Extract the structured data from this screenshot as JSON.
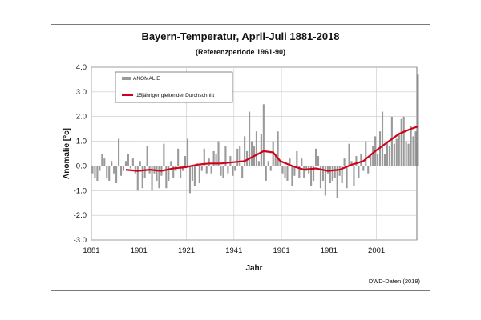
{
  "chart_data": {
    "type": "bar",
    "title": "Bayern-Temperatur, April-Juli 1881-2018",
    "subtitle": "(Referenzperiode 1961-90)",
    "xlabel": "Jahr",
    "ylabel": "Anomalie [°c]",
    "source": "DWD-Daten  (2018)",
    "xlim": [
      1881,
      2018
    ],
    "ylim": [
      -3.0,
      4.0
    ],
    "x_ticks": [
      "1881",
      "1901",
      "1921",
      "1941",
      "1961",
      "1981",
      "2001"
    ],
    "x_tick_values": [
      1881,
      1901,
      1921,
      1941,
      1961,
      1981,
      2001
    ],
    "y_ticks": [
      "-3.0",
      "-2.0",
      "-1.0",
      "0.0",
      "1.0",
      "2.0",
      "3.0",
      "4.0"
    ],
    "y_tick_values": [
      -3,
      -2,
      -1,
      0,
      1,
      2,
      3,
      4
    ],
    "grid": true,
    "legend_position": "top-left",
    "series": [
      {
        "name": "ANOMALIE",
        "type": "bar",
        "color": "#9a9a9a",
        "x": [
          1881,
          1882,
          1883,
          1884,
          1885,
          1886,
          1887,
          1888,
          1889,
          1890,
          1891,
          1892,
          1893,
          1894,
          1895,
          1896,
          1897,
          1898,
          1899,
          1900,
          1901,
          1902,
          1903,
          1904,
          1905,
          1906,
          1907,
          1908,
          1909,
          1910,
          1911,
          1912,
          1913,
          1914,
          1915,
          1916,
          1917,
          1918,
          1919,
          1920,
          1921,
          1922,
          1923,
          1924,
          1925,
          1926,
          1927,
          1928,
          1929,
          1930,
          1931,
          1932,
          1933,
          1934,
          1935,
          1936,
          1937,
          1938,
          1939,
          1940,
          1941,
          1942,
          1943,
          1944,
          1945,
          1946,
          1947,
          1948,
          1949,
          1950,
          1951,
          1952,
          1953,
          1954,
          1955,
          1956,
          1957,
          1958,
          1959,
          1960,
          1961,
          1962,
          1963,
          1964,
          1965,
          1966,
          1967,
          1968,
          1969,
          1970,
          1971,
          1972,
          1973,
          1974,
          1975,
          1976,
          1977,
          1978,
          1979,
          1980,
          1981,
          1982,
          1983,
          1984,
          1985,
          1986,
          1987,
          1988,
          1989,
          1990,
          1991,
          1992,
          1993,
          1994,
          1995,
          1996,
          1997,
          1998,
          1999,
          2000,
          2001,
          2002,
          2003,
          2004,
          2005,
          2006,
          2007,
          2008,
          2009,
          2010,
          2011,
          2012,
          2013,
          2014,
          2015,
          2016,
          2017,
          2018
        ],
        "values": [
          -0.3,
          -0.5,
          -0.6,
          -0.2,
          0.5,
          0.3,
          -0.5,
          -0.6,
          0.2,
          -0.3,
          -0.7,
          1.1,
          -0.4,
          -0.2,
          0.2,
          0.5,
          -0.1,
          0.3,
          -0.3,
          -1.0,
          0.2,
          -0.9,
          -0.5,
          0.8,
          -0.3,
          -1.0,
          -0.3,
          -0.6,
          -0.9,
          -0.4,
          0.9,
          -0.9,
          -0.6,
          0.2,
          -0.5,
          -0.2,
          0.7,
          -0.5,
          -0.2,
          0.4,
          1.1,
          -1.1,
          -0.6,
          -0.8,
          0.1,
          -0.7,
          -0.2,
          0.7,
          -0.3,
          0.3,
          -0.3,
          0.6,
          0.5,
          1.0,
          -0.4,
          -0.5,
          0.8,
          -0.3,
          0.4,
          -0.4,
          -0.2,
          0.7,
          0.8,
          -0.5,
          1.2,
          0.6,
          2.2,
          1.0,
          0.8,
          1.4,
          0.2,
          1.3,
          2.5,
          -0.6,
          0.2,
          -0.2,
          1.0,
          0.4,
          1.4,
          0.2,
          -0.3,
          -0.5,
          -0.6,
          0.3,
          -0.8,
          -0.4,
          0.6,
          -0.5,
          0.3,
          -0.5,
          -0.2,
          -0.3,
          -0.8,
          -0.6,
          0.7,
          0.4,
          -0.9,
          -0.6,
          -1.2,
          -0.3,
          -0.7,
          -0.6,
          -0.5,
          -1.3,
          -0.4,
          -0.7,
          0.3,
          -0.9,
          0.9,
          0.2,
          -0.8,
          0.4,
          -0.5,
          0.5,
          -0.2,
          1.0,
          -0.3,
          0.4,
          0.8,
          1.2,
          0.5,
          1.4,
          2.2,
          0.5,
          1.0,
          0.8,
          2.0,
          0.9,
          1.1,
          1.3,
          1.9,
          2.0,
          1.0,
          0.9,
          1.6,
          1.2,
          1.4,
          3.7
        ]
      },
      {
        "name": "15jähriger gleitender Durchschnitt",
        "type": "line",
        "color": "#d0021b",
        "x": [
          1895,
          1900,
          1905,
          1910,
          1915,
          1920,
          1925,
          1930,
          1935,
          1940,
          1945,
          1950,
          1953,
          1957,
          1960,
          1965,
          1970,
          1975,
          1980,
          1985,
          1990,
          1995,
          2000,
          2005,
          2010,
          2015,
          2018
        ],
        "values": [
          -0.15,
          -0.2,
          -0.15,
          -0.2,
          -0.1,
          -0.05,
          0.05,
          0.1,
          0.1,
          0.15,
          0.2,
          0.45,
          0.6,
          0.55,
          0.2,
          0.0,
          -0.15,
          -0.1,
          -0.2,
          -0.15,
          0.05,
          0.2,
          0.6,
          0.95,
          1.3,
          1.5,
          1.6
        ]
      }
    ]
  }
}
